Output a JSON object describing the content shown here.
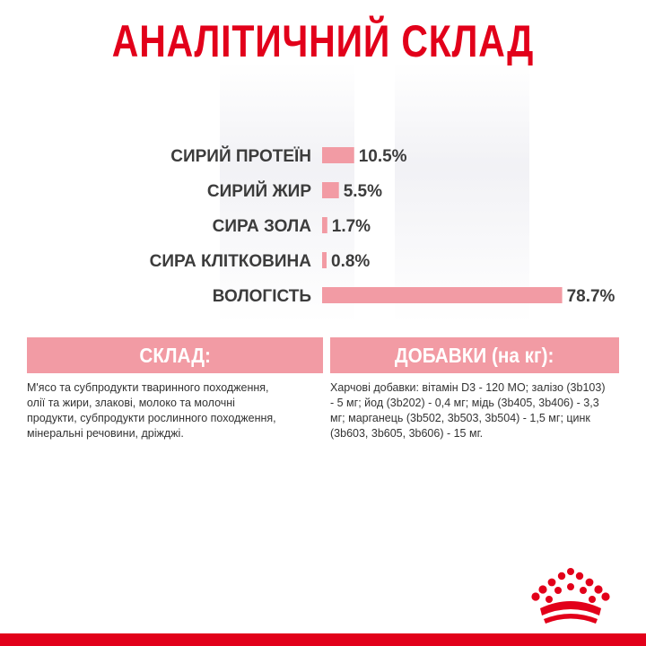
{
  "title": "АНАЛІТИЧНИЙ СКЛАД",
  "colors": {
    "brand_red": "#e2001a",
    "bar_pink": "#f29ba4",
    "label_dark": "#3c3c3c"
  },
  "chart_data": {
    "type": "bar",
    "orientation": "horizontal",
    "categories": [
      "СИРИЙ ПРОТЕЇН",
      "СИРИЙ ЖИР",
      "СИРА ЗОЛА",
      "СИРА КЛІТКОВИНА",
      "ВОЛОГІСТЬ"
    ],
    "values": [
      10.5,
      5.5,
      1.7,
      0.8,
      78.7
    ],
    "value_labels": [
      "10.5%",
      "5.5%",
      "1.7%",
      "0.8%",
      "78.7%"
    ],
    "grid": false,
    "legend": "none"
  },
  "composition": {
    "header": "СКЛАД:",
    "text": "М'ясо та субпродукти тваринного походження, олії та жири, злакові, молоко та молочні продукти, субпродукти рослинного походження, мінеральні речовини, дріжджі."
  },
  "additives": {
    "header": "ДОБАВКИ (на кг):",
    "text": "Харчові добавки: вітамін D3 - 120 МО; залізо (3b103) - 5 мг; йод (3b202) - 0,4 мг; мідь (3b405, 3b406) - 3,3 мг; марганець (3b502, 3b503, 3b504) - 1,5 мг; цинк (3b603, 3b605, 3b606) - 15 мг."
  },
  "logo": {
    "icon": "crown-icon"
  }
}
